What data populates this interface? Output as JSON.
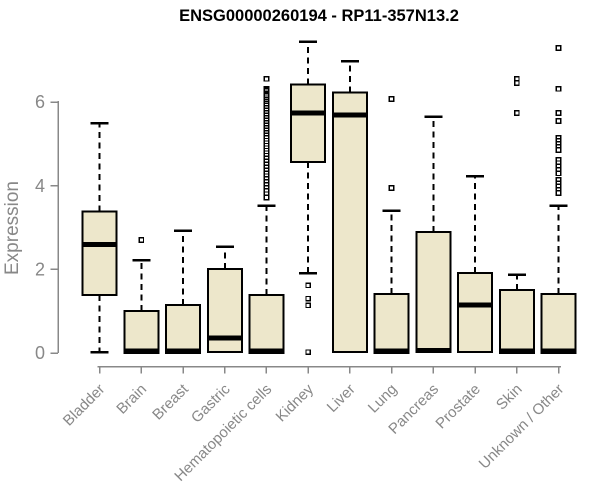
{
  "chart_data": {
    "type": "boxplot",
    "title": "ENSG00000260194 - RP11-357N13.2",
    "ylabel": "Expression",
    "xlabel": "",
    "yticks": [
      0,
      2,
      4,
      6
    ],
    "ylim": [
      -0.3,
      7.7
    ],
    "grid": false,
    "legend": false,
    "box_fill": "#EDE7CB",
    "box_stroke": "#000000",
    "axis_color": "#888888",
    "title_color": "#000000",
    "categories": [
      "Bladder",
      "Brain",
      "Breast",
      "Gastric",
      "Hematopoietic cells",
      "Kidney",
      "Liver",
      "Lung",
      "Pancreas",
      "Prostate",
      "Skin",
      "Unknown / Other"
    ],
    "series": [
      {
        "category": "Bladder",
        "whisker_low": 0.02,
        "q1": 1.39,
        "median": 2.6,
        "q3": 3.38,
        "whisker_high": 5.5,
        "outliers": []
      },
      {
        "category": "Brain",
        "whisker_low": 0,
        "q1": 0,
        "median": 0.05,
        "q3": 1.0,
        "whisker_high": 2.22,
        "outliers": [
          2.7
        ]
      },
      {
        "category": "Breast",
        "whisker_low": 0,
        "q1": 0,
        "median": 0.05,
        "q3": 1.15,
        "whisker_high": 2.93,
        "outliers": []
      },
      {
        "category": "Gastric",
        "whisker_low": 0.02,
        "q1": 0.02,
        "median": 0.36,
        "q3": 2.01,
        "whisker_high": 2.54,
        "outliers": []
      },
      {
        "category": "Hematopoietic cells",
        "whisker_low": 0,
        "q1": 0,
        "median": 0.05,
        "q3": 1.39,
        "whisker_high": 3.52,
        "outliers": [
          6.56,
          6.32,
          6.28,
          6.24,
          6.2,
          6.16,
          6.12,
          6.07,
          6.02,
          5.97,
          5.92,
          5.86,
          5.8,
          5.74,
          5.68,
          5.62,
          5.56,
          5.5,
          5.44,
          5.38,
          5.32,
          5.26,
          5.2,
          5.14,
          5.08,
          5.02,
          4.96,
          4.9,
          4.84,
          4.78,
          4.72,
          4.65,
          4.58,
          4.51,
          4.44,
          4.37,
          4.3,
          4.23,
          4.16,
          4.09,
          4.02,
          3.95,
          3.88,
          3.8,
          3.72
        ]
      },
      {
        "category": "Kidney",
        "whisker_low": 1.91,
        "q1": 4.57,
        "median": 5.74,
        "q3": 6.42,
        "whisker_high": 7.45,
        "outliers": [
          1.62,
          1.3,
          1.14,
          0.02
        ]
      },
      {
        "category": "Liver",
        "whisker_low": 0.02,
        "q1": 0.02,
        "median": 5.69,
        "q3": 6.23,
        "whisker_high": 6.98,
        "outliers": []
      },
      {
        "category": "Lung",
        "whisker_low": 0,
        "q1": 0,
        "median": 0.05,
        "q3": 1.41,
        "whisker_high": 3.4,
        "outliers": [
          6.08,
          3.95
        ]
      },
      {
        "category": "Pancreas",
        "whisker_low": 0.02,
        "q1": 0.02,
        "median": 0.06,
        "q3": 2.89,
        "whisker_high": 5.65,
        "outliers": []
      },
      {
        "category": "Prostate",
        "whisker_low": 0.02,
        "q1": 0.02,
        "median": 1.15,
        "q3": 1.91,
        "whisker_high": 4.23,
        "outliers": []
      },
      {
        "category": "Skin",
        "whisker_low": 0,
        "q1": 0,
        "median": 0.05,
        "q3": 1.51,
        "whisker_high": 1.87,
        "outliers": [
          6.56,
          6.46,
          5.74
        ]
      },
      {
        "category": "Unknown / Other",
        "whisker_low": 0,
        "q1": 0,
        "median": 0.05,
        "q3": 1.41,
        "whisker_high": 3.52,
        "outliers": [
          7.3,
          6.32,
          5.74,
          5.55,
          5.14,
          5.07,
          5.0,
          4.93,
          4.86,
          4.62,
          4.54,
          4.46,
          4.38,
          4.3,
          4.14,
          4.06,
          3.98,
          3.9,
          3.83
        ]
      }
    ]
  }
}
